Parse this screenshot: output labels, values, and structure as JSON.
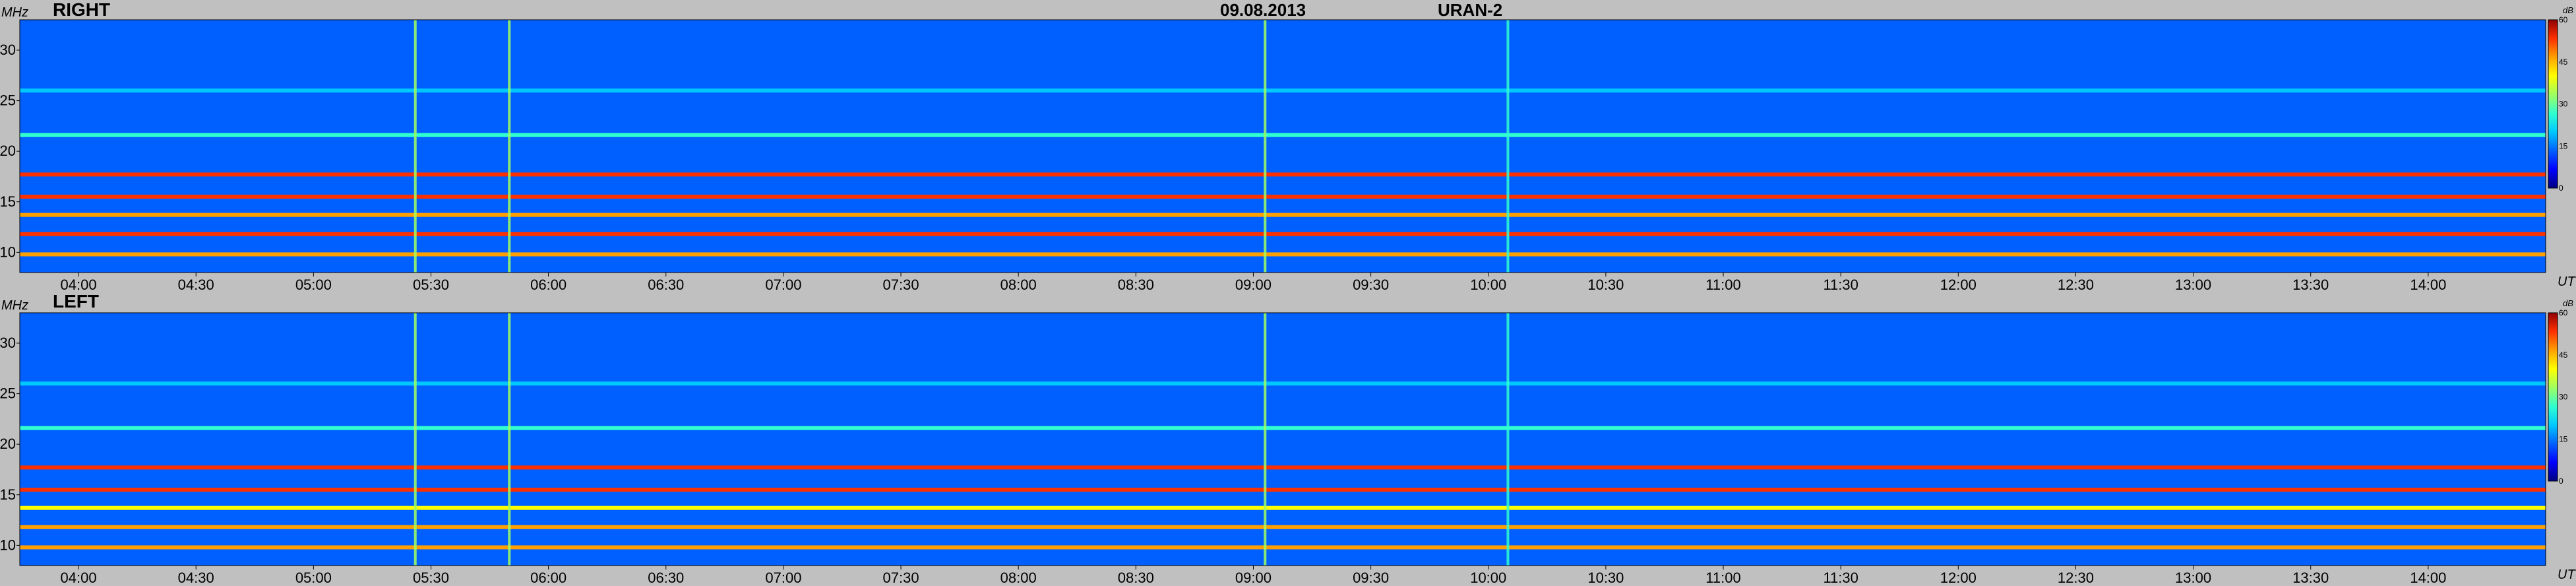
{
  "header": {
    "date": "09.08.2013",
    "instrument": "URAN-2"
  },
  "colormap": [
    "#00007f",
    "#0000ff",
    "#0060ff",
    "#00c8ff",
    "#30ffd0",
    "#a0ff60",
    "#ffff00",
    "#ffa000",
    "#ff3000",
    "#900000"
  ],
  "chart_data": [
    {
      "type": "heatmap",
      "title": "RIGHT",
      "ylabel": "MHz",
      "xlabel": "UT",
      "colorbar_label": "dB",
      "colorbar_ticks": [
        "0",
        "15",
        "30",
        "45",
        "60"
      ],
      "clim": [
        0,
        60
      ],
      "ylim": [
        8,
        33
      ],
      "xlim": [
        "03:45",
        "14:30"
      ],
      "x_ticks": [
        "04:00",
        "04:30",
        "05:00",
        "05:30",
        "06:00",
        "06:30",
        "07:00",
        "07:30",
        "08:00",
        "08:30",
        "09:00",
        "09:30",
        "10:00",
        "10:30",
        "11:00",
        "11:30",
        "12:00",
        "12:30",
        "13:00",
        "13:30",
        "14:00"
      ],
      "y_ticks": [
        "10",
        "15",
        "20",
        "25",
        "30"
      ],
      "background_level_db": 12,
      "interference_lines": [
        {
          "freq_mhz": 9.8,
          "level_db": 48
        },
        {
          "freq_mhz": 11.8,
          "level_db": 50
        },
        {
          "freq_mhz": 13.7,
          "level_db": 44
        },
        {
          "freq_mhz": 15.5,
          "level_db": 52
        },
        {
          "freq_mhz": 17.7,
          "level_db": 50
        },
        {
          "freq_mhz": 21.6,
          "level_db": 28
        },
        {
          "freq_mhz": 26.0,
          "level_db": 20
        }
      ],
      "bursts": [
        {
          "time": "05:26",
          "level_db": 30
        },
        {
          "time": "05:50",
          "level_db": 35
        },
        {
          "time": "09:03",
          "level_db": 33
        },
        {
          "time": "10:05",
          "level_db": 25
        }
      ]
    },
    {
      "type": "heatmap",
      "title": "LEFT",
      "ylabel": "MHz",
      "xlabel": "UT",
      "colorbar_label": "dB",
      "colorbar_ticks": [
        "0",
        "15",
        "30",
        "45",
        "60"
      ],
      "clim": [
        0,
        60
      ],
      "ylim": [
        8,
        33
      ],
      "xlim": [
        "03:45",
        "14:30"
      ],
      "x_ticks": [
        "04:00",
        "04:30",
        "05:00",
        "05:30",
        "06:00",
        "06:30",
        "07:00",
        "07:30",
        "08:00",
        "08:30",
        "09:00",
        "09:30",
        "10:00",
        "10:30",
        "11:00",
        "11:30",
        "12:00",
        "12:30",
        "13:00",
        "13:30",
        "14:00"
      ],
      "y_ticks": [
        "10",
        "15",
        "20",
        "25",
        "30"
      ],
      "background_level_db": 12,
      "interference_lines": [
        {
          "freq_mhz": 9.8,
          "level_db": 46
        },
        {
          "freq_mhz": 11.8,
          "level_db": 48
        },
        {
          "freq_mhz": 13.7,
          "level_db": 42
        },
        {
          "freq_mhz": 15.5,
          "level_db": 52
        },
        {
          "freq_mhz": 17.7,
          "level_db": 50
        },
        {
          "freq_mhz": 21.6,
          "level_db": 28
        },
        {
          "freq_mhz": 26.0,
          "level_db": 20
        }
      ],
      "bursts": [
        {
          "time": "05:26",
          "level_db": 30
        },
        {
          "time": "05:50",
          "level_db": 35
        },
        {
          "time": "09:03",
          "level_db": 33
        },
        {
          "time": "10:05",
          "level_db": 25
        }
      ]
    }
  ]
}
